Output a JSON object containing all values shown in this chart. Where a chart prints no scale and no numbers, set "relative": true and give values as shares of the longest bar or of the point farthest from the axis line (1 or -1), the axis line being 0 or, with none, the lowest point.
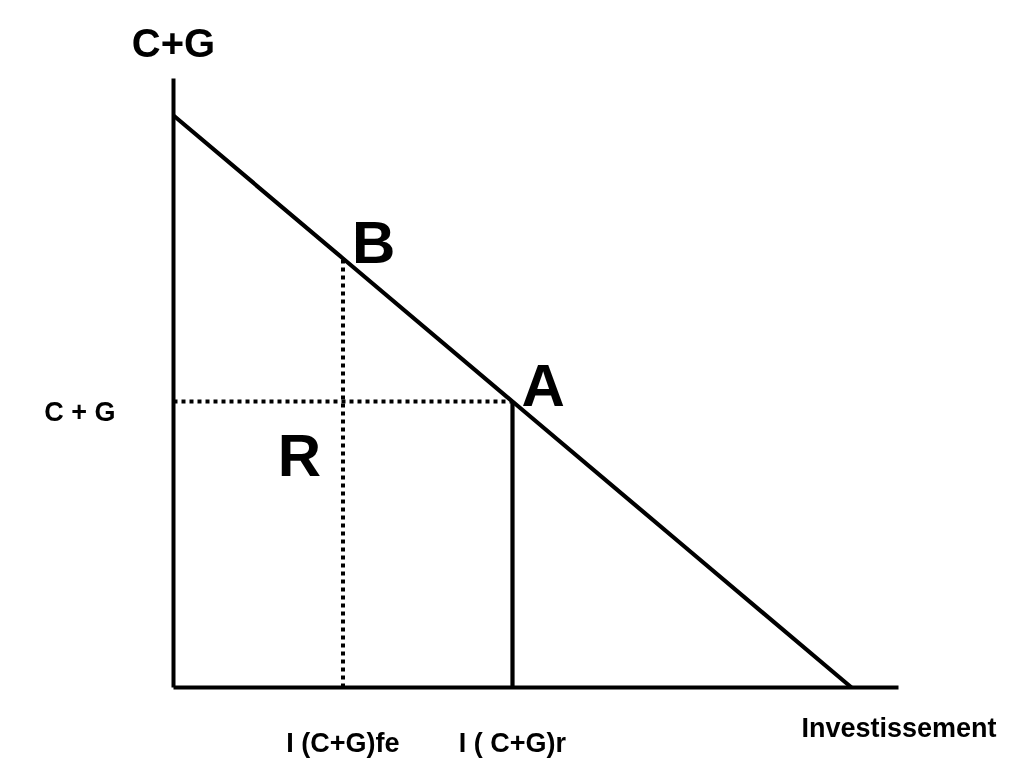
{
  "chart_data": {
    "type": "line",
    "relative": true,
    "xlabel": "Investissement",
    "ylabel": "C+G",
    "categories": [
      null,
      "I (C+G)fe",
      "I ( C+G)r",
      null,
      null
    ],
    "series": [
      {
        "color": "#000000",
        "values": [
          1,
          0.75,
          0.5,
          0.25,
          0
        ],
        "line_style": "solid"
      },
      {
        "color": "#000000",
        "x": [
          "I (C+G)fe",
          "I (C+G)fe"
        ],
        "values": [
          0,
          0.75
        ],
        "line_style": "dotted"
      },
      {
        "name": "C + G",
        "color": "#000000",
        "values": [
          0.5,
          0.5,
          0.5,
          null,
          null
        ],
        "line_style": "dotted"
      },
      {
        "color": "#000000",
        "x": [
          "I ( C+G)r",
          "I ( C+G)r"
        ],
        "values": [
          0,
          0.5
        ],
        "line_style": "solid"
      }
    ],
    "annotations": [
      {
        "text": "B",
        "x": "I (C+G)fe",
        "y": 0.75
      },
      {
        "text": "A",
        "x": "I ( C+G)r",
        "y": 0.5
      },
      {
        "text": "R",
        "x": "I (C+G)fe",
        "y": 0.5
      }
    ]
  }
}
